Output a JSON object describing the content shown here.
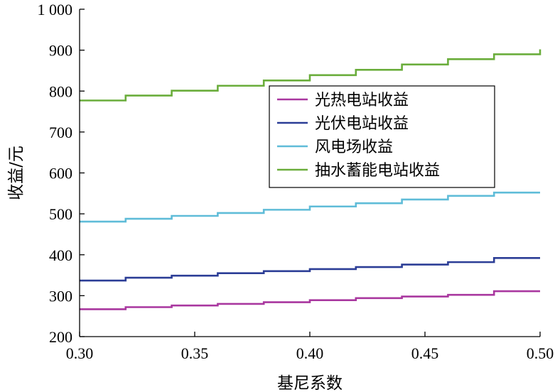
{
  "chart_data": {
    "type": "line",
    "step": true,
    "xlabel": "基尼系数",
    "ylabel": "收益/元",
    "xlim": [
      0.3,
      0.5
    ],
    "ylim": [
      200,
      1000
    ],
    "x_ticks": [
      0.3,
      0.35,
      0.4,
      0.45,
      0.5
    ],
    "x_tick_labels": [
      "0.30",
      "0.35",
      "0.40",
      "0.45",
      "0.50"
    ],
    "y_ticks": [
      200,
      300,
      400,
      500,
      600,
      700,
      800,
      900,
      1000
    ],
    "y_tick_labels": [
      "200",
      "300",
      "400",
      "500",
      "600",
      "700",
      "800",
      "900",
      "1 000"
    ],
    "legend_position": "upper-center-right",
    "x": [
      0.3,
      0.32,
      0.34,
      0.36,
      0.38,
      0.4,
      0.42,
      0.44,
      0.46,
      0.48,
      0.5
    ],
    "series": [
      {
        "name": "光热电站收益",
        "color": "#a9379f",
        "values": [
          267,
          272,
          276,
          280,
          284,
          289,
          294,
          298,
          302,
          311,
          311
        ]
      },
      {
        "name": "光伏电站收益",
        "color": "#2b3d96",
        "values": [
          337,
          344,
          349,
          355,
          360,
          365,
          370,
          376,
          382,
          392,
          392
        ]
      },
      {
        "name": "风电场收益",
        "color": "#5fbcd8",
        "values": [
          481,
          488,
          495,
          502,
          510,
          518,
          526,
          535,
          544,
          552,
          552
        ]
      },
      {
        "name": "抽水蓄能电站收益",
        "color": "#6aad3b",
        "values": [
          777,
          789,
          801,
          813,
          826,
          839,
          852,
          865,
          878,
          890,
          902
        ]
      }
    ]
  }
}
